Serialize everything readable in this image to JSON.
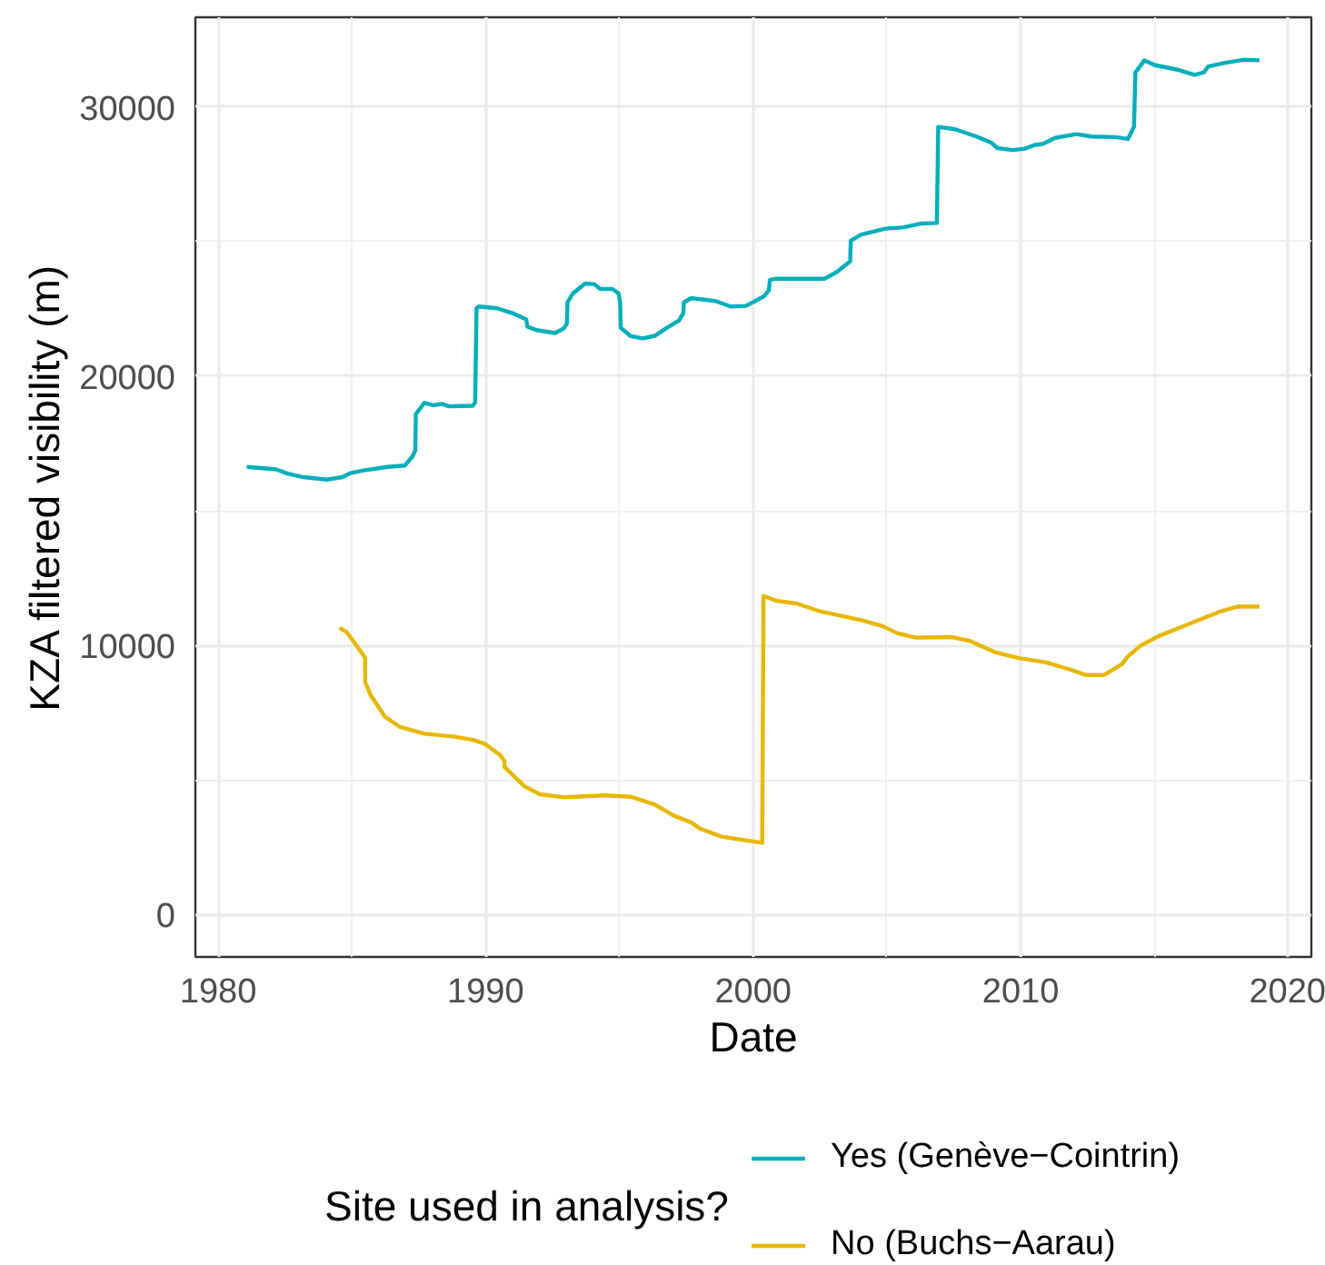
{
  "chart_data": {
    "type": "line",
    "xlabel": "Date",
    "ylabel": "KZA filtered visibility (m)",
    "legend_title": "Site used in analysis?",
    "xlim": [
      1979.15,
      2020.87
    ],
    "ylim": [
      -1570,
      33330
    ],
    "xticks": [
      1980,
      {
        "value": 1985,
        "label": null
      },
      1990,
      {
        "value": 1995,
        "label": null
      },
      2000,
      {
        "value": 2005,
        "label": null
      },
      2010,
      {
        "value": 2015,
        "label": null
      },
      2020
    ],
    "yticks": [
      0,
      {
        "value": 5000,
        "label": null
      },
      10000,
      {
        "value": 15000,
        "label": null
      },
      20000,
      {
        "value": 25000,
        "label": null
      },
      30000
    ],
    "grid": true,
    "legend": "bottom",
    "line_style": "solid",
    "series": [
      {
        "name": "Yes (Genève−Cointrin)",
        "color": "#00afbb",
        "x": [
          1981.07,
          1982.16,
          1982.6,
          1983.18,
          1984.08,
          1984.65,
          1984.94,
          1985.44,
          1986.35,
          1986.98,
          1987.26,
          1987.37,
          1987.39,
          1987.71,
          1988.05,
          1988.39,
          1988.62,
          1989.52,
          1989.61,
          1989.66,
          1989.75,
          1990.43,
          1991.0,
          1991.52,
          1991.56,
          1991.9,
          1992.59,
          1992.93,
          1993.04,
          1993.06,
          1993.27,
          1993.72,
          1994.06,
          1994.29,
          1994.74,
          1994.97,
          1995.03,
          1995.05,
          1995.42,
          1995.87,
          1996.33,
          1996.78,
          1997.23,
          1997.39,
          1997.41,
          1997.69,
          1998.59,
          1999.16,
          1999.73,
          2000.41,
          2000.59,
          2000.63,
          2000.86,
          2002.68,
          2003.13,
          2003.63,
          2003.65,
          2004.04,
          2004.94,
          2005.62,
          2006.3,
          2006.87,
          2006.92,
          2007.55,
          2008.35,
          2008.91,
          2009.14,
          2009.71,
          2010.16,
          2010.5,
          2010.84,
          2011.29,
          2012.09,
          2012.65,
          2013.56,
          2014.01,
          2014.24,
          2014.29,
          2014.63,
          2015.03,
          2015.83,
          2016.51,
          2016.85,
          2017.01,
          2017.64,
          2018.32,
          2018.93
        ],
        "values": [
          16630,
          16540,
          16380,
          16250,
          16160,
          16250,
          16400,
          16500,
          16630,
          16680,
          17010,
          17240,
          18590,
          19010,
          18920,
          18970,
          18880,
          18900,
          19030,
          22520,
          22590,
          22520,
          22340,
          22110,
          21840,
          21710,
          21600,
          21780,
          21960,
          22740,
          23080,
          23440,
          23420,
          23240,
          23240,
          23080,
          22740,
          21800,
          21490,
          21400,
          21500,
          21800,
          22070,
          22340,
          22740,
          22900,
          22790,
          22590,
          22610,
          22970,
          23190,
          23580,
          23620,
          23620,
          23870,
          24270,
          25030,
          25260,
          25480,
          25530,
          25670,
          25690,
          29260,
          29170,
          28900,
          28670,
          28470,
          28400,
          28450,
          28580,
          28630,
          28850,
          28990,
          28900,
          28880,
          28810,
          29260,
          31280,
          31730,
          31550,
          31390,
          31190,
          31280,
          31500,
          31640,
          31750,
          31730
        ]
      },
      {
        "name": "No (Buchs−Aarau)",
        "color": "#e7b800",
        "x": [
          1984.54,
          1984.81,
          1985.22,
          1985.49,
          1985.5,
          1985.71,
          1986.24,
          1986.8,
          1987.71,
          1988.84,
          1989.52,
          1989.98,
          1990.54,
          1990.7,
          1990.71,
          1991.45,
          1992.02,
          1992.93,
          1994.51,
          1995.42,
          1996.33,
          1997.01,
          1997.69,
          1998.03,
          1998.82,
          1999.73,
          2000.34,
          2000.39,
          2000.86,
          2001.65,
          2002.45,
          2004.04,
          2004.83,
          2005.4,
          2006.08,
          2007.44,
          2008.12,
          2009.03,
          2009.93,
          2010.95,
          2011.86,
          2012.43,
          2013.11,
          2013.79,
          2014.01,
          2014.47,
          2015.15,
          2016.28,
          2017.41,
          2018.1,
          2018.93
        ],
        "values": [
          10650,
          10490,
          9930,
          9550,
          8630,
          8140,
          7350,
          6970,
          6720,
          6610,
          6490,
          6340,
          5930,
          5710,
          5480,
          4770,
          4470,
          4360,
          4430,
          4380,
          4090,
          3690,
          3420,
          3190,
          2900,
          2760,
          2670,
          11840,
          11660,
          11550,
          11280,
          10940,
          10720,
          10450,
          10290,
          10310,
          10160,
          9750,
          9530,
          9370,
          9100,
          8900,
          8900,
          9300,
          9590,
          9980,
          10340,
          10790,
          11240,
          11440,
          11440
        ]
      }
    ]
  }
}
